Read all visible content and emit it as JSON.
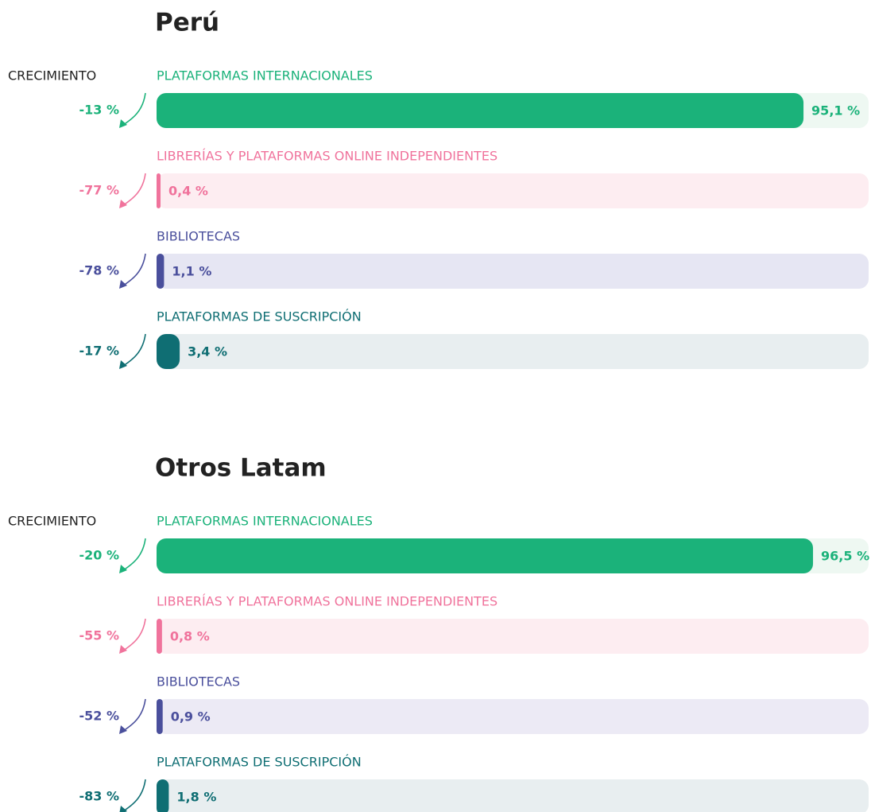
{
  "chart_data": [
    {
      "type": "bar",
      "title": "Perú",
      "growth_label": "CRECIMIENTO",
      "categories": [
        "PLATAFORMAS INTERNACIONALES",
        "LIBRERÍAS Y PLATAFORMAS ONLINE INDEPENDIENTES",
        "BIBLIOTECAS",
        "PLATAFORMAS DE SUSCRIPCIÓN"
      ],
      "values": [
        95.1,
        0.4,
        1.1,
        3.4
      ],
      "value_labels": [
        "95,1 %",
        "0,4 %",
        "1,1 %",
        "3,4 %"
      ],
      "growth": [
        -13,
        -77,
        -78,
        -17
      ],
      "growth_labels": [
        "-13 %",
        "-77 %",
        "-78 %",
        "-17 %"
      ],
      "colors": [
        "#1bb27a",
        "#f0739c",
        "#4a4f9c",
        "#0f6e73"
      ],
      "track_colors": [
        "#eef8f2",
        "#fdedf1",
        "#e6e6f3",
        "#e8eef0"
      ],
      "xlim": [
        0,
        100
      ]
    },
    {
      "type": "bar",
      "title": "Otros Latam",
      "growth_label": "CRECIMIENTO",
      "categories": [
        "PLATAFORMAS INTERNACIONALES",
        "LIBRERÍAS Y PLATAFORMAS ONLINE INDEPENDIENTES",
        "BIBLIOTECAS",
        "PLATAFORMAS DE SUSCRIPCIÓN"
      ],
      "values": [
        96.5,
        0.8,
        0.9,
        1.8
      ],
      "value_labels": [
        "96,5 %",
        "0,8 %",
        "0,9 %",
        "1,8 %"
      ],
      "growth": [
        -20,
        -55,
        -52,
        -83
      ],
      "growth_labels": [
        "-20 %",
        "-55 %",
        "-52 %",
        "-83 %"
      ],
      "colors": [
        "#1bb27a",
        "#f0739c",
        "#4a4f9c",
        "#0f6e73"
      ],
      "track_colors": [
        "#eef8f2",
        "#fdedf1",
        "#eceaf5",
        "#e8eef0"
      ],
      "xlim": [
        0,
        100
      ]
    }
  ]
}
